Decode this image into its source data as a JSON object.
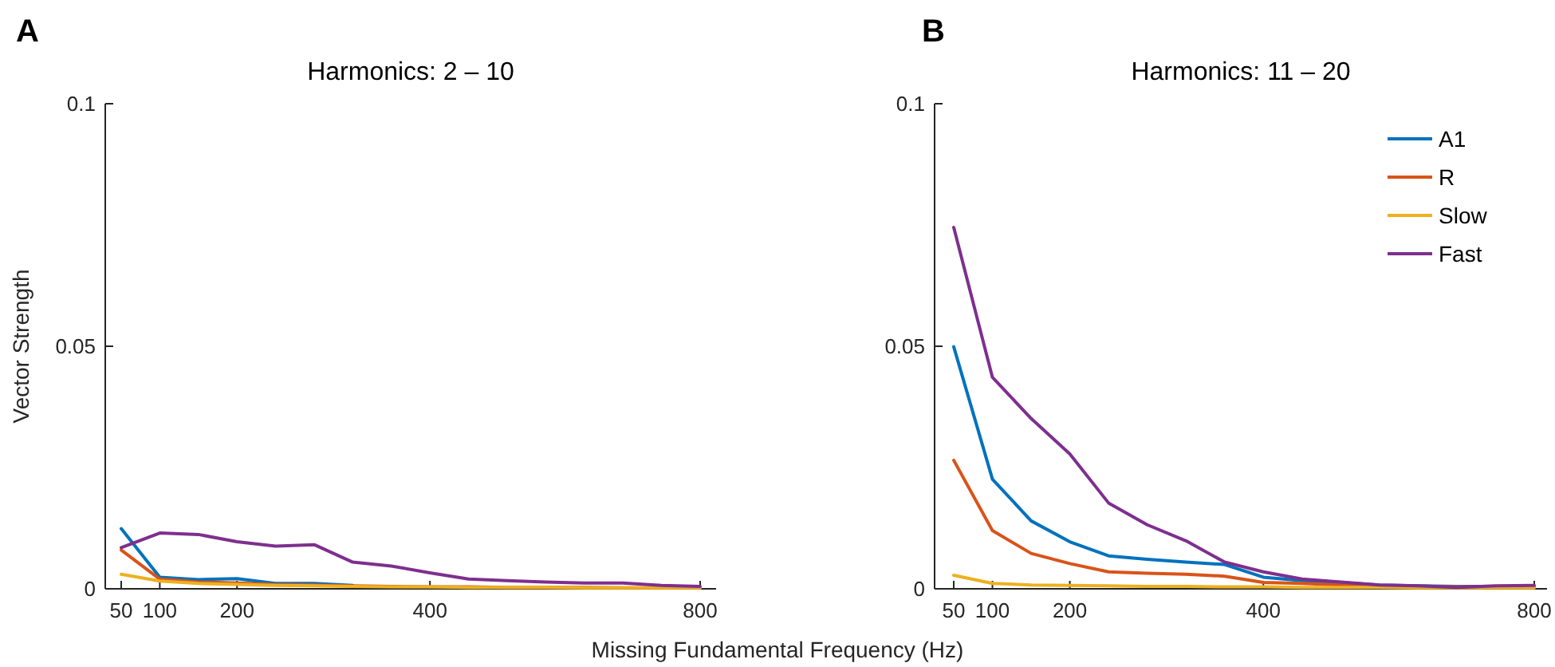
{
  "chart_data": [
    {
      "type": "line",
      "title": "Harmonics:  2 – 10",
      "ylabel": "Vector Strength",
      "xlabel": "Missing Fundamental Frequency (Hz)",
      "annotations": [
        "A"
      ],
      "categories": [
        "50",
        "100",
        null,
        "200",
        null,
        null,
        null,
        null,
        "400",
        null,
        null,
        null,
        null,
        null,
        null,
        "800"
      ],
      "ylim": [
        0,
        0.1
      ],
      "yticks": [
        0,
        0.05,
        0.1
      ],
      "grid": false,
      "marker": "none",
      "line_style": "solid",
      "series": [
        {
          "color": "#0072bd",
          "values": [
            0.0124,
            0.0024,
            0.0019,
            0.0021,
            0.0011,
            0.0011,
            0.0007,
            null,
            null,
            null,
            null,
            null,
            null,
            null,
            null,
            null
          ]
        },
        {
          "color": "#d95319",
          "values": [
            0.008,
            0.002,
            0.0014,
            0.0012,
            0.0009,
            0.0008,
            0.0006,
            0.0005,
            0.0004,
            0.0004,
            0.0003,
            0.0003,
            0.0003,
            0.0002,
            0.0002,
            0.0002
          ]
        },
        {
          "color": "#edb120",
          "values": [
            0.003,
            0.0016,
            0.0011,
            0.0009,
            0.0007,
            0.0006,
            0.0005,
            0.0004,
            0.0004,
            0.0003,
            0.0003,
            0.0003,
            0.0002,
            0.0002,
            0.0002,
            0.0002
          ]
        },
        {
          "color": "#7e2f8e",
          "values": [
            0.0085,
            0.0115,
            0.0112,
            0.0097,
            0.0088,
            0.0091,
            0.0055,
            0.0047,
            0.0033,
            0.002,
            0.0017,
            0.0014,
            0.0012,
            0.0012,
            0.0007,
            0.0005
          ]
        }
      ]
    },
    {
      "type": "line",
      "title": "Harmonics:  11 – 20",
      "annotations": [
        "B"
      ],
      "legend": "top right",
      "categories": [
        "50",
        "100",
        null,
        "200",
        null,
        null,
        null,
        null,
        "400",
        null,
        null,
        null,
        null,
        null,
        null,
        "800"
      ],
      "ylim": [
        0,
        0.1
      ],
      "yticks": [
        0,
        0.05,
        0.1
      ],
      "grid": false,
      "marker": "none",
      "line_style": "solid",
      "series": [
        {
          "name": "A1",
          "color": "#0072bd",
          "values": [
            0.0499,
            0.0226,
            0.014,
            0.0097,
            0.0068,
            0.0061,
            0.0055,
            0.005,
            0.0024,
            0.0017,
            0.0013,
            0.0008,
            0.0006,
            0.0005,
            0.0005,
            0.0005
          ]
        },
        {
          "name": "R",
          "color": "#d95319",
          "values": [
            0.0265,
            0.012,
            0.0073,
            0.0052,
            0.0035,
            0.0032,
            0.003,
            0.0026,
            0.0013,
            0.0011,
            0.0008,
            0.0006,
            0.0005,
            0.0004,
            0.0004,
            0.0004
          ]
        },
        {
          "name": "Slow",
          "color": "#edb120",
          "values": [
            0.0028,
            0.0011,
            0.0008,
            0.0007,
            0.0006,
            0.0005,
            0.0005,
            0.0004,
            0.0004,
            0.0003,
            0.0003,
            0.0003,
            0.0002,
            0.0002,
            0.0002,
            0.0002
          ]
        },
        {
          "name": "Fast",
          "color": "#7e2f8e",
          "values": [
            0.0745,
            0.0436,
            0.0351,
            0.0278,
            0.0177,
            0.0132,
            0.0099,
            0.0055,
            0.0035,
            0.002,
            0.0014,
            0.0008,
            0.0006,
            0.0003,
            0.0006,
            0.0007
          ]
        }
      ]
    }
  ]
}
